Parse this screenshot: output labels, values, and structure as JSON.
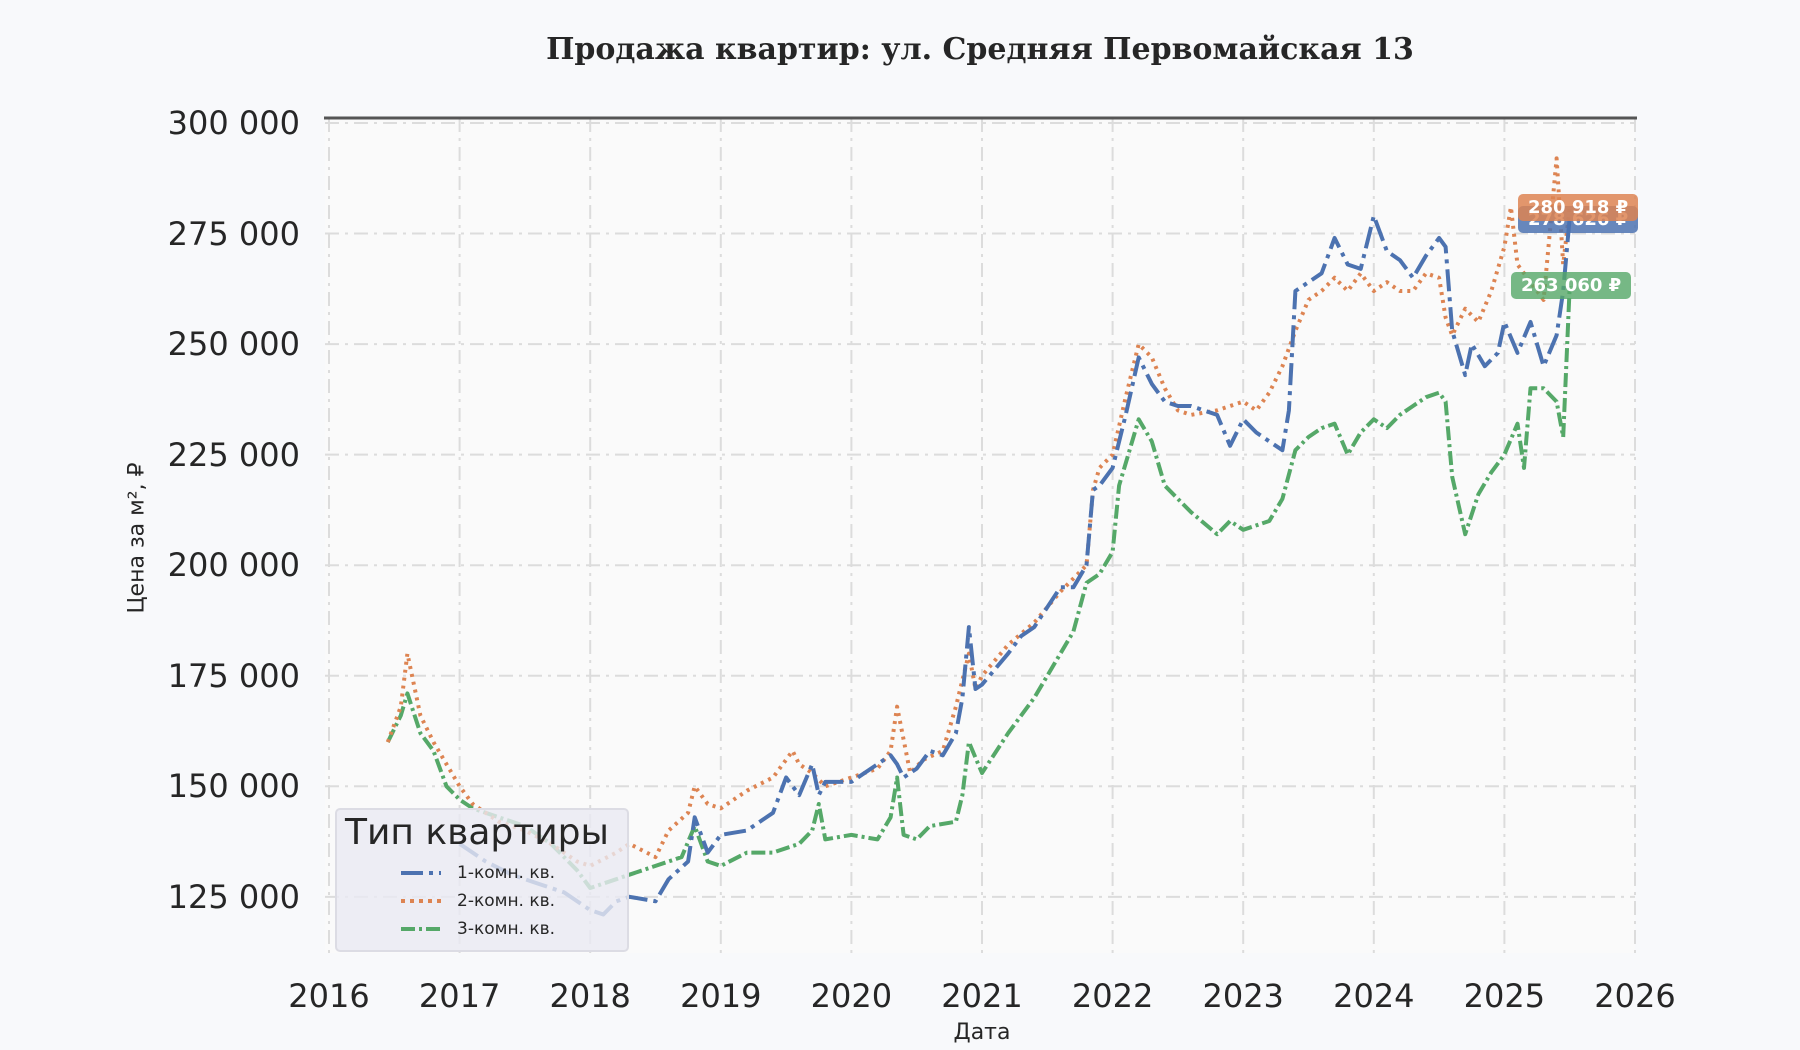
{
  "title": "Продажа квартир: ул. Средняя Первомайская 13",
  "axes": {
    "xlabel": "Дата",
    "ylabel": "Цена за м², ₽",
    "yticks": [
      "300 000",
      "275 000",
      "250 000",
      "225 000",
      "200 000",
      "175 000",
      "150 000",
      "125 000"
    ],
    "xticks": [
      "2016",
      "2017",
      "2018",
      "2019",
      "2020",
      "2021",
      "2022",
      "2023",
      "2024",
      "2025",
      "2026"
    ]
  },
  "legend": {
    "title": "Тип квартиры",
    "items": [
      "1-комн. кв.",
      "2-комн. кв.",
      "3-комн. кв."
    ]
  },
  "end_labels": {
    "one_room": "278 626 ₽",
    "two_room": "280 918 ₽",
    "three_room": "263 060 ₽"
  },
  "colors": {
    "one_room": "#4c72b0",
    "two_room": "#dd8452",
    "three_room": "#55a868",
    "grid": "#dcdcdc",
    "background": "#f8f9fb"
  },
  "chart_data": {
    "type": "line",
    "title": "Продажа квартир: ул. Средняя Первомайская 13",
    "xlabel": "Дата",
    "ylabel": "Цена за м², ₽",
    "xlim": [
      2016,
      2026
    ],
    "ylim": [
      112000,
      301000
    ],
    "grid": true,
    "legend_position": "lower left",
    "series": [
      {
        "name": "1-комн. кв.",
        "style": "dashed",
        "x": [
          2017.0,
          2017.2,
          2017.4,
          2017.6,
          2017.8,
          2018.0,
          2018.1,
          2018.2,
          2018.3,
          2018.5,
          2018.6,
          2018.75,
          2018.8,
          2018.9,
          2019.0,
          2019.2,
          2019.4,
          2019.5,
          2019.6,
          2019.7,
          2019.75,
          2019.8,
          2020.0,
          2020.2,
          2020.3,
          2020.35,
          2020.4,
          2020.5,
          2020.6,
          2020.7,
          2020.8,
          2020.85,
          2020.9,
          2020.95,
          2021.0,
          2021.2,
          2021.3,
          2021.4,
          2021.6,
          2021.7,
          2021.8,
          2021.85,
          2021.9,
          2022.0,
          2022.1,
          2022.2,
          2022.3,
          2022.4,
          2022.5,
          2022.6,
          2022.8,
          2022.9,
          2023.0,
          2023.1,
          2023.2,
          2023.3,
          2023.35,
          2023.4,
          2023.5,
          2023.6,
          2023.7,
          2023.8,
          2023.9,
          2024.0,
          2024.1,
          2024.2,
          2024.3,
          2024.4,
          2024.5,
          2024.55,
          2024.6,
          2024.7,
          2024.75,
          2024.85,
          2024.95,
          2025.0,
          2025.1,
          2025.2,
          2025.3,
          2025.4,
          2025.45,
          2025.5
        ],
        "y": [
          137000,
          133000,
          130000,
          128000,
          126000,
          122000,
          121000,
          124000,
          125000,
          124000,
          129000,
          133000,
          143000,
          135000,
          139000,
          140000,
          144000,
          152000,
          148000,
          155000,
          148000,
          151000,
          151000,
          155000,
          157000,
          155000,
          152000,
          154000,
          158000,
          157000,
          162000,
          170000,
          186000,
          172000,
          173000,
          180000,
          184000,
          186000,
          195000,
          195000,
          200000,
          217000,
          218000,
          222000,
          234000,
          247000,
          241000,
          237000,
          236000,
          236000,
          234000,
          227000,
          233000,
          230000,
          228000,
          226000,
          235000,
          262000,
          264000,
          266000,
          274000,
          268000,
          267000,
          279000,
          271000,
          269000,
          265000,
          270000,
          274000,
          272000,
          253000,
          243000,
          250000,
          245000,
          248000,
          255000,
          248000,
          255000,
          245000,
          252000,
          262000,
          278626
        ]
      },
      {
        "name": "2-комн. кв.",
        "style": "dotted",
        "x": [
          2016.45,
          2016.55,
          2016.6,
          2016.7,
          2016.8,
          2016.9,
          2017.0,
          2017.1,
          2017.3,
          2017.5,
          2017.7,
          2017.9,
          2018.0,
          2018.2,
          2018.3,
          2018.5,
          2018.6,
          2018.75,
          2018.8,
          2018.9,
          2019.0,
          2019.2,
          2019.4,
          2019.55,
          2019.6,
          2019.7,
          2019.8,
          2020.0,
          2020.2,
          2020.3,
          2020.35,
          2020.45,
          2020.55,
          2020.7,
          2020.8,
          2020.9,
          2020.95,
          2021.0,
          2021.2,
          2021.4,
          2021.6,
          2021.7,
          2021.8,
          2021.85,
          2021.9,
          2022.0,
          2022.1,
          2022.2,
          2022.3,
          2022.4,
          2022.5,
          2022.6,
          2022.8,
          2022.9,
          2023.0,
          2023.1,
          2023.2,
          2023.3,
          2023.4,
          2023.5,
          2023.6,
          2023.7,
          2023.8,
          2023.9,
          2024.0,
          2024.1,
          2024.2,
          2024.3,
          2024.4,
          2024.5,
          2024.55,
          2024.6,
          2024.7,
          2024.8,
          2024.9,
          2025.0,
          2025.05,
          2025.1,
          2025.2,
          2025.3,
          2025.4,
          2025.45,
          2025.5
        ],
        "y": [
          160000,
          168000,
          180000,
          166000,
          160000,
          155000,
          150000,
          146000,
          142000,
          140000,
          137000,
          133000,
          132000,
          135000,
          137000,
          134000,
          140000,
          144000,
          150000,
          146000,
          145000,
          149000,
          152000,
          158000,
          155000,
          153000,
          150000,
          152000,
          154000,
          158000,
          168000,
          153000,
          156000,
          158000,
          168000,
          180000,
          172000,
          175000,
          182000,
          187000,
          194000,
          197000,
          200000,
          217000,
          222000,
          225000,
          238000,
          250000,
          247000,
          240000,
          235000,
          234000,
          235000,
          236000,
          237000,
          235000,
          239000,
          245000,
          253000,
          260000,
          262000,
          265000,
          262000,
          266000,
          262000,
          264000,
          262000,
          262000,
          266000,
          265000,
          256000,
          252000,
          258000,
          255000,
          262000,
          272000,
          281000,
          268000,
          264000,
          260000,
          292000,
          268000,
          280918
        ]
      },
      {
        "name": "3-комн. кв.",
        "style": "dashdot",
        "x": [
          2016.45,
          2016.55,
          2016.6,
          2016.7,
          2016.8,
          2016.9,
          2017.0,
          2017.1,
          2017.3,
          2017.5,
          2017.7,
          2017.9,
          2018.0,
          2018.2,
          2018.3,
          2018.5,
          2018.7,
          2018.8,
          2018.9,
          2019.0,
          2019.2,
          2019.4,
          2019.6,
          2019.7,
          2019.75,
          2019.8,
          2020.0,
          2020.2,
          2020.3,
          2020.35,
          2020.4,
          2020.5,
          2020.6,
          2020.8,
          2020.85,
          2020.9,
          2021.0,
          2021.2,
          2021.4,
          2021.6,
          2021.7,
          2021.8,
          2021.9,
          2022.0,
          2022.05,
          2022.2,
          2022.3,
          2022.4,
          2022.5,
          2022.6,
          2022.8,
          2022.9,
          2023.0,
          2023.1,
          2023.2,
          2023.3,
          2023.4,
          2023.5,
          2023.6,
          2023.7,
          2023.8,
          2023.9,
          2024.0,
          2024.1,
          2024.2,
          2024.3,
          2024.4,
          2024.5,
          2024.55,
          2024.6,
          2024.7,
          2024.8,
          2024.9,
          2025.0,
          2025.1,
          2025.15,
          2025.2,
          2025.3,
          2025.4,
          2025.45,
          2025.5
        ],
        "y": [
          160000,
          166000,
          171000,
          162000,
          158000,
          150000,
          147000,
          145000,
          143000,
          141000,
          137000,
          131000,
          127000,
          129000,
          130000,
          132000,
          134000,
          141000,
          133000,
          132000,
          135000,
          135000,
          137000,
          140000,
          146000,
          138000,
          139000,
          138000,
          143000,
          152000,
          139000,
          138000,
          141000,
          142000,
          148000,
          160000,
          153000,
          162000,
          170000,
          180000,
          185000,
          196000,
          198000,
          203000,
          218000,
          233000,
          228000,
          218000,
          215000,
          212000,
          207000,
          210000,
          208000,
          209000,
          210000,
          215000,
          226000,
          229000,
          231000,
          232000,
          225000,
          230000,
          233000,
          231000,
          234000,
          236000,
          238000,
          239000,
          237000,
          220000,
          207000,
          216000,
          221000,
          225000,
          232000,
          222000,
          240000,
          240000,
          237000,
          229000,
          263060
        ]
      }
    ],
    "end_annotations": [
      {
        "series": "2-комн. кв.",
        "label": "280 918 ₽"
      },
      {
        "series": "1-комн. кв.",
        "label": "278 626 ₽"
      },
      {
        "series": "3-комн. кв.",
        "label": "263 060 ₽"
      }
    ]
  }
}
